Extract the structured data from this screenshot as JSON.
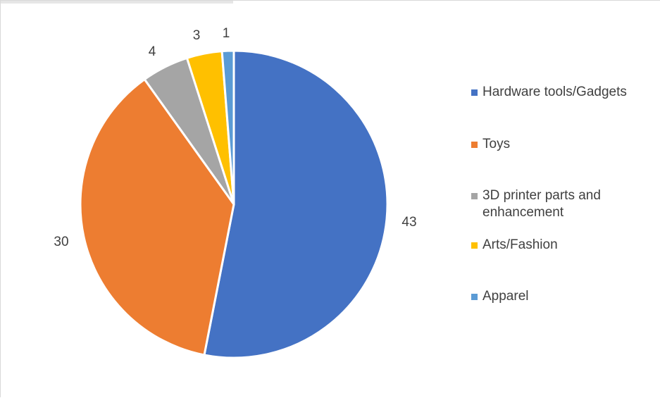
{
  "chart_data": {
    "type": "pie",
    "title": "",
    "categories": [
      "Hardware tools/Gadgets",
      "Toys",
      "3D printer parts and enhancement",
      "Arts/Fashion",
      "Apparel"
    ],
    "values": [
      43,
      30,
      4,
      3,
      1
    ],
    "colors": [
      "#4472C4",
      "#ED7D31",
      "#A5A5A5",
      "#FFC000",
      "#5B9BD5"
    ],
    "data_labels": [
      "43",
      "30",
      "4",
      "3",
      "1"
    ],
    "start_angle_deg": 0,
    "direction": "clockwise",
    "legend_position": "right"
  }
}
